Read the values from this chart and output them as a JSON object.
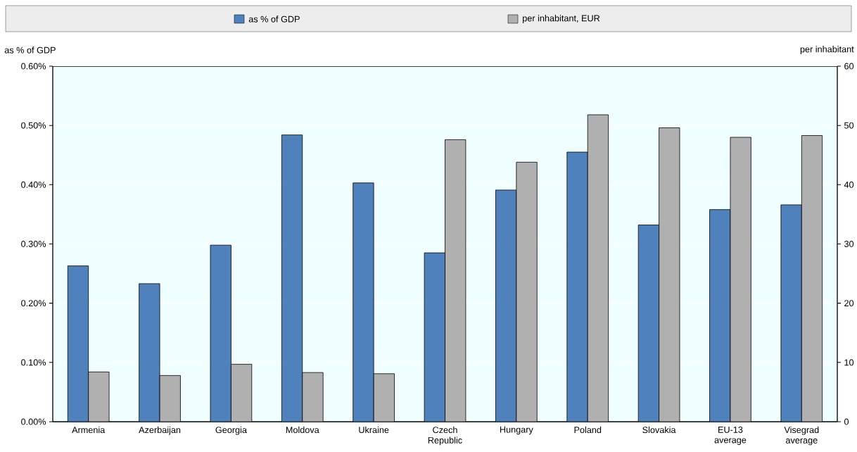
{
  "chart_data": {
    "type": "bar",
    "ylabel": "as % of GDP",
    "y2label": "per inhabitant",
    "categories": [
      "Armenia",
      "Azerbaijan",
      "Georgia",
      "Moldova",
      "Ukraine",
      "Czech Republic",
      "Hungary",
      "Poland",
      "Slovakia",
      "EU-13 average",
      "Visegrad average"
    ],
    "series": [
      {
        "name": "as % of GDP",
        "color": "#4f81bd",
        "values": [
          0.263,
          0.233,
          0.298,
          0.484,
          0.403,
          0.285,
          0.391,
          0.455,
          0.332,
          0.358,
          0.366
        ]
      },
      {
        "name": "per inhabitant, EUR",
        "color": "#b0b0b0",
        "axis": "y2",
        "values": [
          8.4,
          7.8,
          9.7,
          8.3,
          8.1,
          47.6,
          43.8,
          51.8,
          49.6,
          48.0,
          48.3
        ]
      }
    ],
    "ylim": [
      0,
      0.6
    ],
    "yticks": [
      {
        "value": 0,
        "label": "0.00%"
      },
      {
        "value": 0.1,
        "label": "0.10%"
      },
      {
        "value": 0.2,
        "label": "0.20%"
      },
      {
        "value": 0.3,
        "label": "0.30%"
      },
      {
        "value": 0.4,
        "label": "0.40%"
      },
      {
        "value": 0.5,
        "label": "0.50%"
      },
      {
        "value": 0.6,
        "label": "0.60%"
      }
    ],
    "y2lim": [
      0,
      60
    ],
    "y2ticks": [
      0,
      10,
      20,
      30,
      40,
      50,
      60
    ],
    "grid": "y",
    "legend": "top"
  }
}
